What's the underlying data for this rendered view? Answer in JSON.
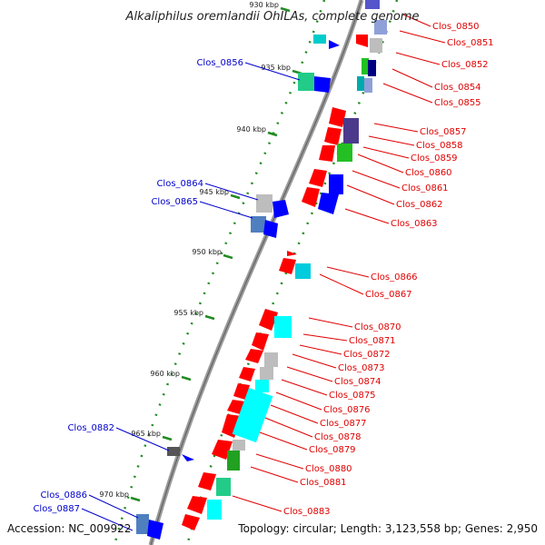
{
  "title": "Alkaliphilus oremlandii OhILAs, complete genome",
  "accession": "Accession: NC_009922",
  "topology": "Topology: circular; Length: 3,123,558 bp; Genes: 2,950",
  "ticks": [
    "930 kbp",
    "935 kbp",
    "940 kbp",
    "945 kbp",
    "950 kbp",
    "955 kbp",
    "960 kbp",
    "965 kbp",
    "970 kbp"
  ],
  "genes_right": [
    "Clos_0850",
    "Clos_0851",
    "Clos_0852",
    "Clos_0854",
    "Clos_0855",
    "Clos_0857",
    "Clos_0858",
    "Clos_0859",
    "Clos_0860",
    "Clos_0861",
    "Clos_0862",
    "Clos_0863",
    "Clos_0866",
    "Clos_0867",
    "Clos_0870",
    "Clos_0871",
    "Clos_0872",
    "Clos_0873",
    "Clos_0874",
    "Clos_0875",
    "Clos_0876",
    "Clos_0877",
    "Clos_0878",
    "Clos_0879",
    "Clos_0880",
    "Clos_0881",
    "Clos_0883"
  ],
  "genes_left": [
    "Clos_0856",
    "Clos_0864",
    "Clos_0865",
    "Clos_0882",
    "Clos_0886",
    "Clos_0887"
  ],
  "colors": {
    "forward": "#ff0000",
    "reverse": "#0000ff",
    "backbone": "#888888",
    "tick": "#228b22",
    "label_right": "#e00000",
    "label_left": "#0000cc"
  }
}
